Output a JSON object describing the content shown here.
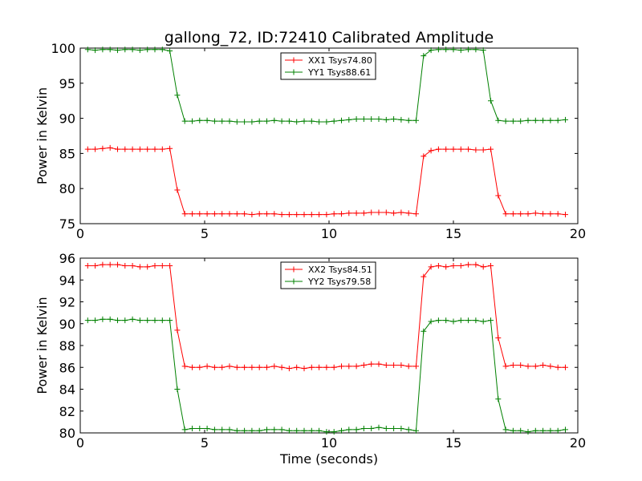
{
  "chart_data": [
    {
      "type": "line",
      "title": "gallong_72, ID:72410 Calibrated Amplitude",
      "xlabel": "",
      "ylabel": "Power in Kelvin",
      "xlim": [
        0,
        20
      ],
      "ylim": [
        75,
        100
      ],
      "xticks": [
        "0",
        "5",
        "10",
        "15",
        "20"
      ],
      "yticks": [
        "75",
        "80",
        "85",
        "90",
        "95",
        "100"
      ],
      "grid": false,
      "legend_position": "top-center",
      "x": [
        0.3,
        0.6,
        0.9,
        1.2,
        1.5,
        1.8,
        2.1,
        2.4,
        2.7,
        3.0,
        3.3,
        3.6,
        3.9,
        4.2,
        4.5,
        4.8,
        5.1,
        5.4,
        5.7,
        6.0,
        6.3,
        6.6,
        6.9,
        7.2,
        7.5,
        7.8,
        8.1,
        8.4,
        8.7,
        9.0,
        9.3,
        9.6,
        9.9,
        10.2,
        10.5,
        10.8,
        11.1,
        11.4,
        11.7,
        12.0,
        12.3,
        12.6,
        12.9,
        13.2,
        13.5,
        13.8,
        14.1,
        14.4,
        14.7,
        15.0,
        15.3,
        15.6,
        15.9,
        16.2,
        16.5,
        16.8,
        17.1,
        17.4,
        17.7,
        18.0,
        18.3,
        18.6,
        18.9,
        19.2,
        19.5
      ],
      "series": [
        {
          "name": "XX1 Tsys74.80",
          "color": "#ff0000",
          "values": [
            85.6,
            85.6,
            85.7,
            85.8,
            85.6,
            85.6,
            85.6,
            85.6,
            85.6,
            85.6,
            85.6,
            85.7,
            79.8,
            76.4,
            76.4,
            76.4,
            76.4,
            76.4,
            76.4,
            76.4,
            76.4,
            76.4,
            76.3,
            76.4,
            76.4,
            76.4,
            76.3,
            76.3,
            76.3,
            76.3,
            76.3,
            76.3,
            76.3,
            76.4,
            76.4,
            76.5,
            76.5,
            76.5,
            76.6,
            76.6,
            76.6,
            76.5,
            76.6,
            76.5,
            76.4,
            84.6,
            85.4,
            85.6,
            85.6,
            85.6,
            85.6,
            85.6,
            85.5,
            85.5,
            85.6,
            79.0,
            76.4,
            76.4,
            76.4,
            76.4,
            76.5,
            76.4,
            76.4,
            76.4,
            76.3
          ]
        },
        {
          "name": "YY1 Tsys88.61",
          "color": "#008000",
          "values": [
            99.8,
            99.7,
            99.8,
            99.8,
            99.7,
            99.8,
            99.8,
            99.7,
            99.8,
            99.8,
            99.8,
            99.6,
            93.3,
            89.6,
            89.6,
            89.7,
            89.7,
            89.6,
            89.6,
            89.6,
            89.5,
            89.5,
            89.5,
            89.6,
            89.6,
            89.7,
            89.6,
            89.6,
            89.5,
            89.6,
            89.6,
            89.5,
            89.5,
            89.6,
            89.7,
            89.8,
            89.9,
            89.9,
            89.9,
            89.9,
            89.8,
            89.9,
            89.8,
            89.7,
            89.7,
            98.9,
            99.7,
            99.8,
            99.8,
            99.8,
            99.7,
            99.8,
            99.8,
            99.7,
            92.5,
            89.7,
            89.6,
            89.6,
            89.6,
            89.7,
            89.7,
            89.7,
            89.7,
            89.7,
            89.8
          ]
        }
      ]
    },
    {
      "type": "line",
      "title": "",
      "xlabel": "Time (seconds)",
      "ylabel": "Power in Kelvin",
      "xlim": [
        0,
        20
      ],
      "ylim": [
        80,
        96
      ],
      "xticks": [
        "0",
        "5",
        "10",
        "15",
        "20"
      ],
      "yticks": [
        "80",
        "82",
        "84",
        "86",
        "88",
        "90",
        "92",
        "94",
        "96"
      ],
      "grid": false,
      "legend_position": "top-center",
      "x": [
        0.3,
        0.6,
        0.9,
        1.2,
        1.5,
        1.8,
        2.1,
        2.4,
        2.7,
        3.0,
        3.3,
        3.6,
        3.9,
        4.2,
        4.5,
        4.8,
        5.1,
        5.4,
        5.7,
        6.0,
        6.3,
        6.6,
        6.9,
        7.2,
        7.5,
        7.8,
        8.1,
        8.4,
        8.7,
        9.0,
        9.3,
        9.6,
        9.9,
        10.2,
        10.5,
        10.8,
        11.1,
        11.4,
        11.7,
        12.0,
        12.3,
        12.6,
        12.9,
        13.2,
        13.5,
        13.8,
        14.1,
        14.4,
        14.7,
        15.0,
        15.3,
        15.6,
        15.9,
        16.2,
        16.5,
        16.8,
        17.1,
        17.4,
        17.7,
        18.0,
        18.3,
        18.6,
        18.9,
        19.2,
        19.5
      ],
      "series": [
        {
          "name": "XX2 Tsys84.51",
          "color": "#ff0000",
          "values": [
            95.3,
            95.3,
            95.4,
            95.4,
            95.4,
            95.3,
            95.3,
            95.2,
            95.2,
            95.3,
            95.3,
            95.3,
            89.4,
            86.1,
            86.0,
            86.0,
            86.1,
            86.0,
            86.0,
            86.1,
            86.0,
            86.0,
            86.0,
            86.0,
            86.0,
            86.1,
            86.0,
            85.9,
            86.0,
            85.9,
            86.0,
            86.0,
            86.0,
            86.0,
            86.1,
            86.1,
            86.1,
            86.2,
            86.3,
            86.3,
            86.2,
            86.2,
            86.2,
            86.1,
            86.1,
            94.3,
            95.2,
            95.3,
            95.2,
            95.3,
            95.3,
            95.4,
            95.4,
            95.2,
            95.3,
            88.7,
            86.1,
            86.2,
            86.2,
            86.1,
            86.1,
            86.2,
            86.1,
            86.0,
            86.0
          ]
        },
        {
          "name": "YY2 Tsys79.58",
          "color": "#008000",
          "values": [
            90.3,
            90.3,
            90.4,
            90.4,
            90.3,
            90.3,
            90.4,
            90.3,
            90.3,
            90.3,
            90.3,
            90.3,
            84.0,
            80.3,
            80.4,
            80.4,
            80.4,
            80.3,
            80.3,
            80.3,
            80.2,
            80.2,
            80.2,
            80.2,
            80.3,
            80.3,
            80.3,
            80.2,
            80.2,
            80.2,
            80.2,
            80.2,
            80.1,
            80.1,
            80.2,
            80.3,
            80.3,
            80.4,
            80.4,
            80.5,
            80.4,
            80.4,
            80.4,
            80.3,
            80.2,
            89.3,
            90.2,
            90.3,
            90.3,
            90.2,
            90.3,
            90.3,
            90.3,
            90.2,
            90.3,
            83.1,
            80.3,
            80.2,
            80.2,
            80.1,
            80.2,
            80.2,
            80.2,
            80.2,
            80.3
          ]
        }
      ]
    }
  ]
}
